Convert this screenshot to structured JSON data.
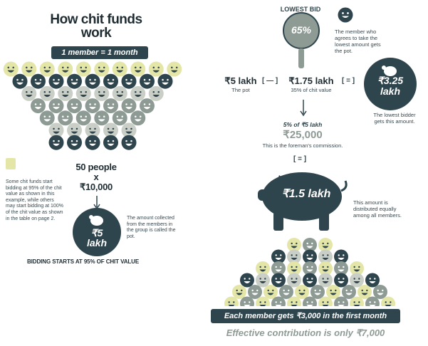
{
  "title_line1": "How chit funds",
  "title_line2": "work",
  "member_month": "1 member = 1 month",
  "tip_text": "Some chit funds start bidding at 95% of the chit value as shown in this example, while others may start bidding at 100% of the chit value as shown in the table on page 2.",
  "people_line1": "50 people",
  "people_line2": "x",
  "people_line3": "₹10,000",
  "pot_bag_line1": "₹5",
  "pot_bag_line2": "lakh",
  "pot_caption": "The amount collected from the members in the group is called the pot.",
  "bidding_starts": "BIDDING STARTS AT 95% OF CHIT VALUE",
  "lowest_bid_label": "LOWEST BID",
  "lowest_bid_value": "65%",
  "member_caption": "The member who agrees to take the lowest amount gets the pot.",
  "eq_pot_value": "₹5 lakh",
  "eq_pot_label": "The pot",
  "eq_minus": "[ — ]",
  "eq_175_value": "₹1.75 lakh",
  "eq_175_label": "35% of chit value",
  "eq_equals": "[ = ]",
  "bag_325_line1": "₹3.25",
  "bag_325_line2": "lakh",
  "lowest_bidder_caption": "The lowest bidder gets this amount.",
  "commission_formula": "5% of ₹5 lakh",
  "commission_value": "₹25,000",
  "commission_caption": "This is the foreman's commission.",
  "eq_equals2": "[ = ]",
  "pig_value": "₹1.5 lakh",
  "distributed_caption": "This amount is distributed equally among all members.",
  "each_member": "Each member gets ₹3,000 in the first month",
  "effective": "Effective contribution is only ₹7,000",
  "colors": {
    "dark": "#2f454d",
    "grey": "#8e9b95",
    "yellow": "#e4e6a8",
    "light": "#c9cec6"
  }
}
